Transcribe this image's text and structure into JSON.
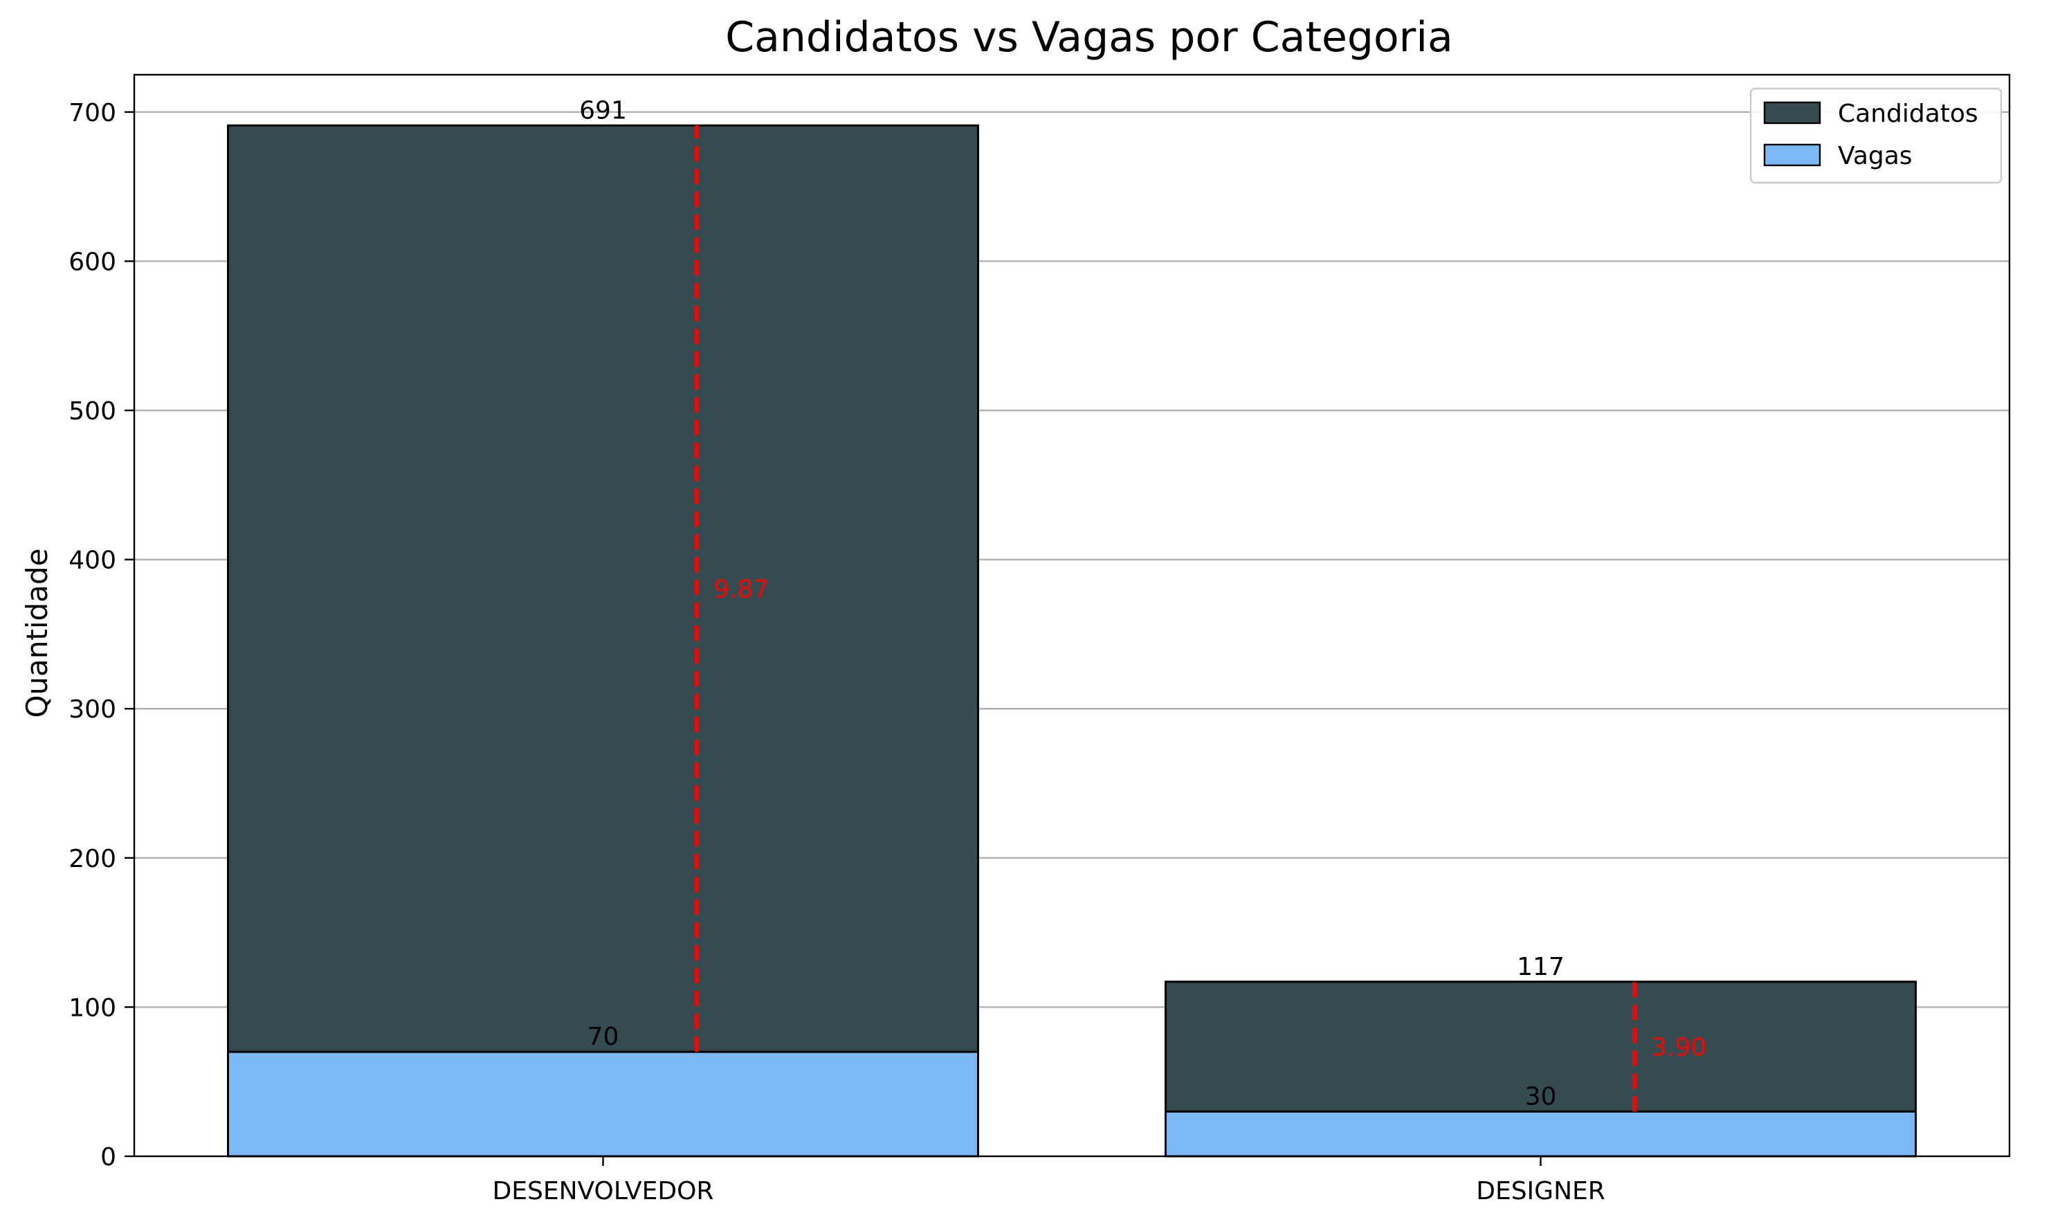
{
  "chart_data": {
    "type": "bar",
    "title": "Candidatos vs Vagas por Categoria",
    "xlabel": "",
    "ylabel": "Quantidade",
    "categories": [
      "DESENVOLVEDOR",
      "DESIGNER"
    ],
    "series": [
      {
        "name": "Candidatos",
        "values": [
          691,
          117
        ],
        "color": "#344b50"
      },
      {
        "name": "Vagas",
        "values": [
          70,
          30
        ],
        "color": "#7cb8f6"
      }
    ],
    "ratios": [
      {
        "category": "DESENVOLVEDOR",
        "label": "9.87",
        "from": 70,
        "to": 691
      },
      {
        "category": "DESIGNER",
        "label": "3.90",
        "from": 30,
        "to": 117
      }
    ],
    "ratio_color": "#ff0000",
    "ylim": [
      0,
      725
    ],
    "yticks": [
      0,
      100,
      200,
      300,
      400,
      500,
      600,
      700
    ],
    "grid": "y",
    "legend_position": "top-right"
  }
}
